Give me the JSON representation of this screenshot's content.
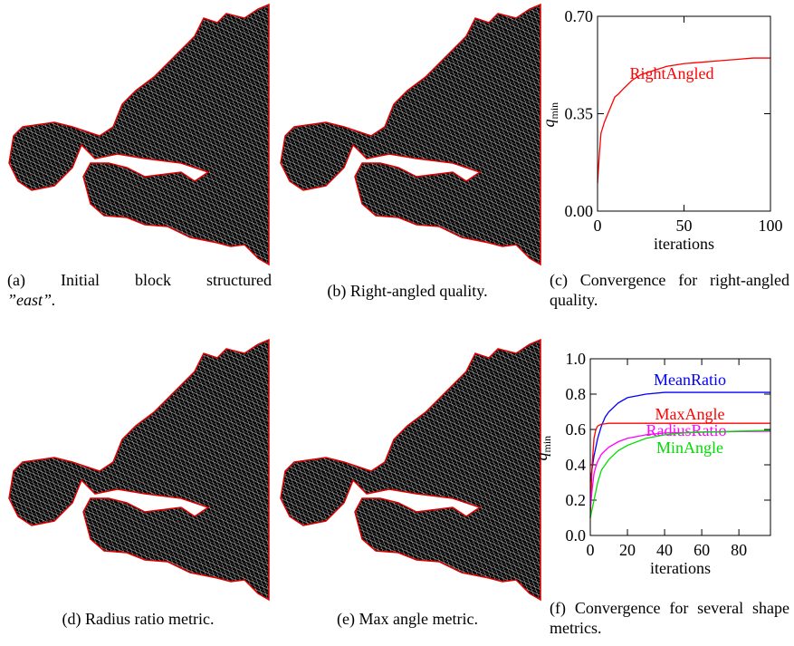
{
  "figure": {
    "captions": {
      "a": {
        "label": "(a) Initial block structured",
        "quote": "”east”."
      },
      "b": "(b) Right-angled quality.",
      "c": "(c) Convergence for right-angled quality.",
      "d": "(d) Radius ratio metric.",
      "e": "(e) Max angle metric.",
      "f": "(f) Convergence for several shape metrics."
    }
  },
  "chart_data": [
    {
      "type": "line",
      "xlabel": "iterations",
      "ylabel": [
        "q",
        "min"
      ],
      "xlim": [
        0,
        100
      ],
      "xticks": [
        0,
        50,
        100
      ],
      "ylim": [
        0,
        0.7
      ],
      "yticks": [
        {
          "value": 0,
          "label": "0.00"
        },
        {
          "value": 0.35,
          "label": "0.35"
        },
        {
          "value": 0.7,
          "label": "0.70"
        }
      ],
      "x": [
        0,
        1,
        2,
        4,
        6,
        8,
        10,
        12,
        15,
        20,
        25,
        30,
        40,
        50,
        60,
        70,
        80,
        90,
        100
      ],
      "series": [
        {
          "name": "RightAngled",
          "color": "#ff0000",
          "values": [
            0.1,
            0.2,
            0.28,
            0.32,
            0.35,
            0.38,
            0.41,
            0.42,
            0.44,
            0.47,
            0.49,
            0.5,
            0.52,
            0.53,
            0.535,
            0.54,
            0.545,
            0.55,
            0.55
          ]
        }
      ]
    },
    {
      "type": "line",
      "xlabel": "iterations",
      "ylabel": [
        "q",
        "min"
      ],
      "xlim": [
        0,
        97
      ],
      "xticks": [
        0,
        20,
        40,
        60,
        80
      ],
      "ylim": [
        0,
        1
      ],
      "yticks": [
        {
          "value": 0,
          "label": "0.0"
        },
        {
          "value": 0.2,
          "label": "0.2"
        },
        {
          "value": 0.4,
          "label": "0.4"
        },
        {
          "value": 0.6,
          "label": "0.6"
        },
        {
          "value": 0.8,
          "label": "0.8"
        },
        {
          "value": 1,
          "label": "1.0"
        }
      ],
      "x": [
        0,
        1,
        2,
        3,
        4,
        6,
        8,
        10,
        15,
        20,
        30,
        40,
        50,
        60,
        80,
        97
      ],
      "series": [
        {
          "name": "MeanRatio",
          "color": "#0000ff",
          "values": [
            0.3,
            0.38,
            0.45,
            0.5,
            0.55,
            0.62,
            0.67,
            0.7,
            0.75,
            0.78,
            0.8,
            0.81,
            0.81,
            0.81,
            0.81,
            0.81
          ]
        },
        {
          "name": "MaxAngle",
          "color": "#ff0000",
          "values": [
            0.1,
            0.4,
            0.55,
            0.6,
            0.62,
            0.63,
            0.632,
            0.635,
            0.635,
            0.635,
            0.635,
            0.635,
            0.635,
            0.635,
            0.635,
            0.635
          ]
        },
        {
          "name": "RadiusRatio",
          "color": "#ff00ff",
          "values": [
            0.15,
            0.26,
            0.35,
            0.39,
            0.42,
            0.46,
            0.48,
            0.5,
            0.53,
            0.55,
            0.57,
            0.58,
            0.582,
            0.585,
            0.588,
            0.59
          ]
        },
        {
          "name": "MinAngle",
          "color": "#00dd00",
          "values": [
            0.1,
            0.15,
            0.2,
            0.25,
            0.3,
            0.37,
            0.4,
            0.43,
            0.48,
            0.51,
            0.55,
            0.57,
            0.58,
            0.585,
            0.59,
            0.595
          ]
        }
      ]
    }
  ]
}
